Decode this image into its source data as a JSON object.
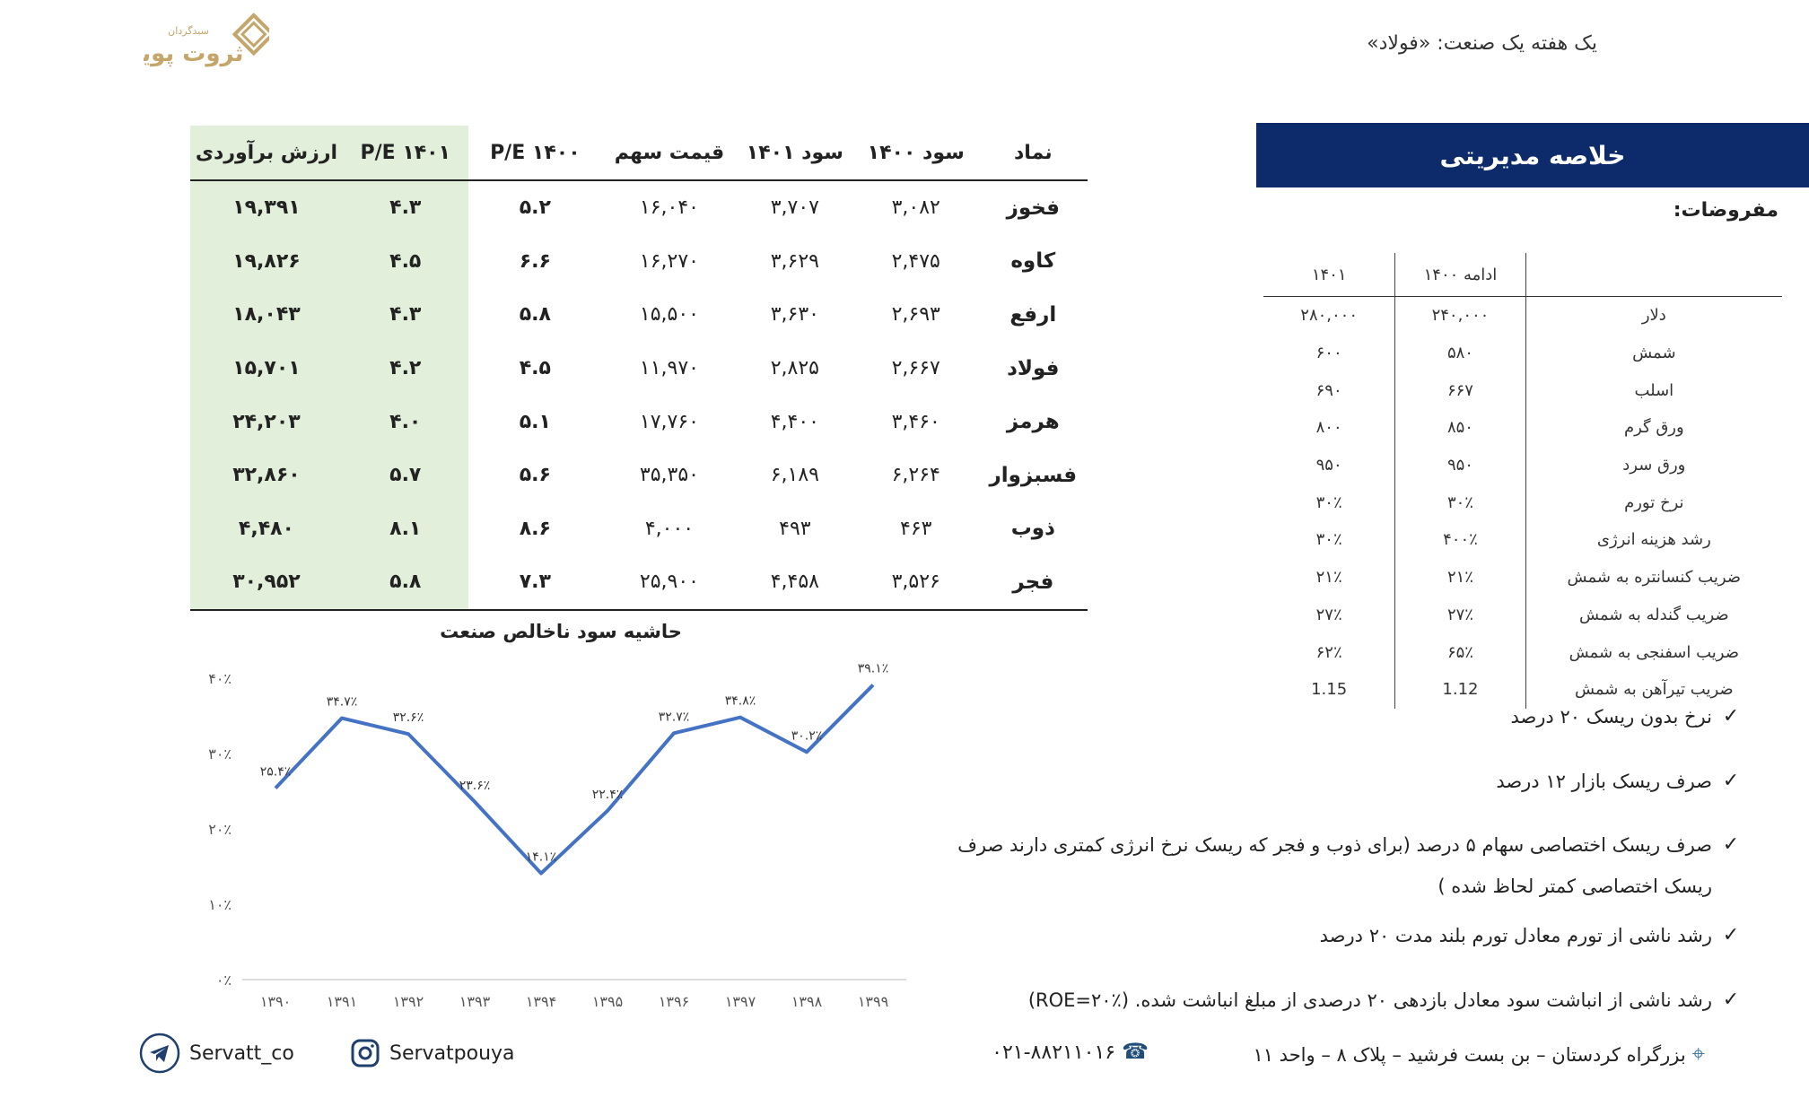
{
  "header": {
    "title": "یک هفته یک صنعت: «فولاد»",
    "logo_text": "سبدگردان ثروت پویا"
  },
  "main_table": {
    "headers": [
      "نماد",
      "سود ۱۴۰۰",
      "سود ۱۴۰۱",
      "قیمت سهم",
      "P/E ۱۴۰۰",
      "P/E ۱۴۰۱",
      "ارزش برآوردی"
    ],
    "rows": [
      [
        "فخوز",
        "۳,۰۸۲",
        "۳,۷۰۷",
        "۱۶,۰۴۰",
        "۵.۲",
        "۴.۳",
        "۱۹,۳۹۱"
      ],
      [
        "کاوه",
        "۲,۴۷۵",
        "۳,۶۲۹",
        "۱۶,۲۷۰",
        "۶.۶",
        "۴.۵",
        "۱۹,۸۲۶"
      ],
      [
        "ارفع",
        "۲,۶۹۳",
        "۳,۶۳۰",
        "۱۵,۵۰۰",
        "۵.۸",
        "۴.۳",
        "۱۸,۰۴۳"
      ],
      [
        "فولاد",
        "۲,۶۶۷",
        "۲,۸۲۵",
        "۱۱,۹۷۰",
        "۴.۵",
        "۴.۲",
        "۱۵,۷۰۱"
      ],
      [
        "هرمز",
        "۳,۴۶۰",
        "۴,۴۰۰",
        "۱۷,۷۶۰",
        "۵.۱",
        "۴.۰",
        "۲۴,۲۰۳"
      ],
      [
        "فسبزوار",
        "۶,۲۶۴",
        "۶,۱۸۹",
        "۳۵,۳۵۰",
        "۵.۶",
        "۵.۷",
        "۳۲,۸۶۰"
      ],
      [
        "ذوب",
        "۴۶۳",
        "۴۹۳",
        "۴,۰۰۰",
        "۸.۶",
        "۸.۱",
        "۴,۴۸۰"
      ],
      [
        "فجر",
        "۳,۵۲۶",
        "۴,۴۵۸",
        "۲۵,۹۰۰",
        "۷.۳",
        "۵.۸",
        "۳۰,۹۵۲"
      ]
    ],
    "highlight_color": "#e2efda"
  },
  "summary": {
    "banner": "خلاصه مدیریتی",
    "banner_color": "#0d2a6b",
    "assumptions_label": "مفروضات:",
    "headers": [
      "",
      "ادامه ۱۴۰۰",
      "۱۴۰۱"
    ],
    "rows": [
      [
        "دلار",
        "۲۴۰,۰۰۰",
        "۲۸۰,۰۰۰"
      ],
      [
        "شمش",
        "۵۸۰",
        "۶۰۰"
      ],
      [
        "اسلب",
        "۶۶۷",
        "۶۹۰"
      ],
      [
        "ورق گرم",
        "۸۵۰",
        "۸۰۰"
      ],
      [
        "ورق سرد",
        "۹۵۰",
        "۹۵۰"
      ],
      [
        "نرخ تورم",
        "۳۰٪",
        "۳۰٪"
      ],
      [
        "رشد هزینه انرژی",
        "۴۰۰٪",
        "۳۰٪"
      ],
      [
        "ضریب کنسانتره به شمش",
        "۲۱٪",
        "۲۱٪"
      ],
      [
        "ضریب گندله به شمش",
        "۲۷٪",
        "۲۷٪"
      ],
      [
        "ضریب اسفنجی به شمش",
        "۶۵٪",
        "۶۲٪"
      ],
      [
        "ضریب تیرآهن به شمش",
        "1.12",
        "1.15"
      ]
    ]
  },
  "bullets": [
    "نرخ بدون ریسک ۲۰ درصد",
    "صرف ریسک بازار ۱۲ درصد",
    "صرف ریسک اختصاصی سهام ۵ درصد (برای ذوب و فجر که ریسک نرخ انرژی کمتری دارند صرف ریسک اختصاصی کمتر لحاظ شده )",
    "رشد ناشی از تورم معادل تورم بلند مدت ۲۰ درصد",
    "رشد ناشی از انباشت سود معادل بازدهی ۲۰ درصدی از مبلغ انباشت شده. (ROE=۲۰٪)"
  ],
  "bullet_icon": "check-icon",
  "chart_data": {
    "type": "line",
    "title": "حاشیه سود ناخالص صنعت",
    "categories": [
      "۱۳۹۰",
      "۱۳۹۱",
      "۱۳۹۲",
      "۱۳۹۳",
      "۱۳۹۴",
      "۱۳۹۵",
      "۱۳۹۶",
      "۱۳۹۷",
      "۱۳۹۸",
      "۱۳۹۹"
    ],
    "values": [
      25.4,
      34.7,
      32.6,
      23.6,
      14.1,
      22.4,
      32.7,
      34.8,
      30.2,
      39.1
    ],
    "data_labels": [
      "۲۵.۴٪",
      "۳۴.۷٪",
      "۳۲.۶٪",
      "۲۳.۶٪",
      "۱۴.۱٪",
      "۲۲.۴٪",
      "۳۲.۷٪",
      "۳۴.۸٪",
      "۳۰.۲٪",
      "۳۹.۱٪"
    ],
    "y_ticks": [
      "۰٪",
      "۱۰٪",
      "۲۰٪",
      "۳۰٪",
      "۴۰٪"
    ],
    "ylim": [
      0,
      40
    ],
    "grid": false,
    "line_color": "#4472c4"
  },
  "footer": {
    "address": "بزرگراه کردستان – بن بست فرشید – پلاک ۸ – واحد ۱۱",
    "phone": "۰۲۱-۸۸۲۱۱۰۱۶",
    "instagram": "Servatpouya",
    "telegram": "Servatt_co"
  }
}
